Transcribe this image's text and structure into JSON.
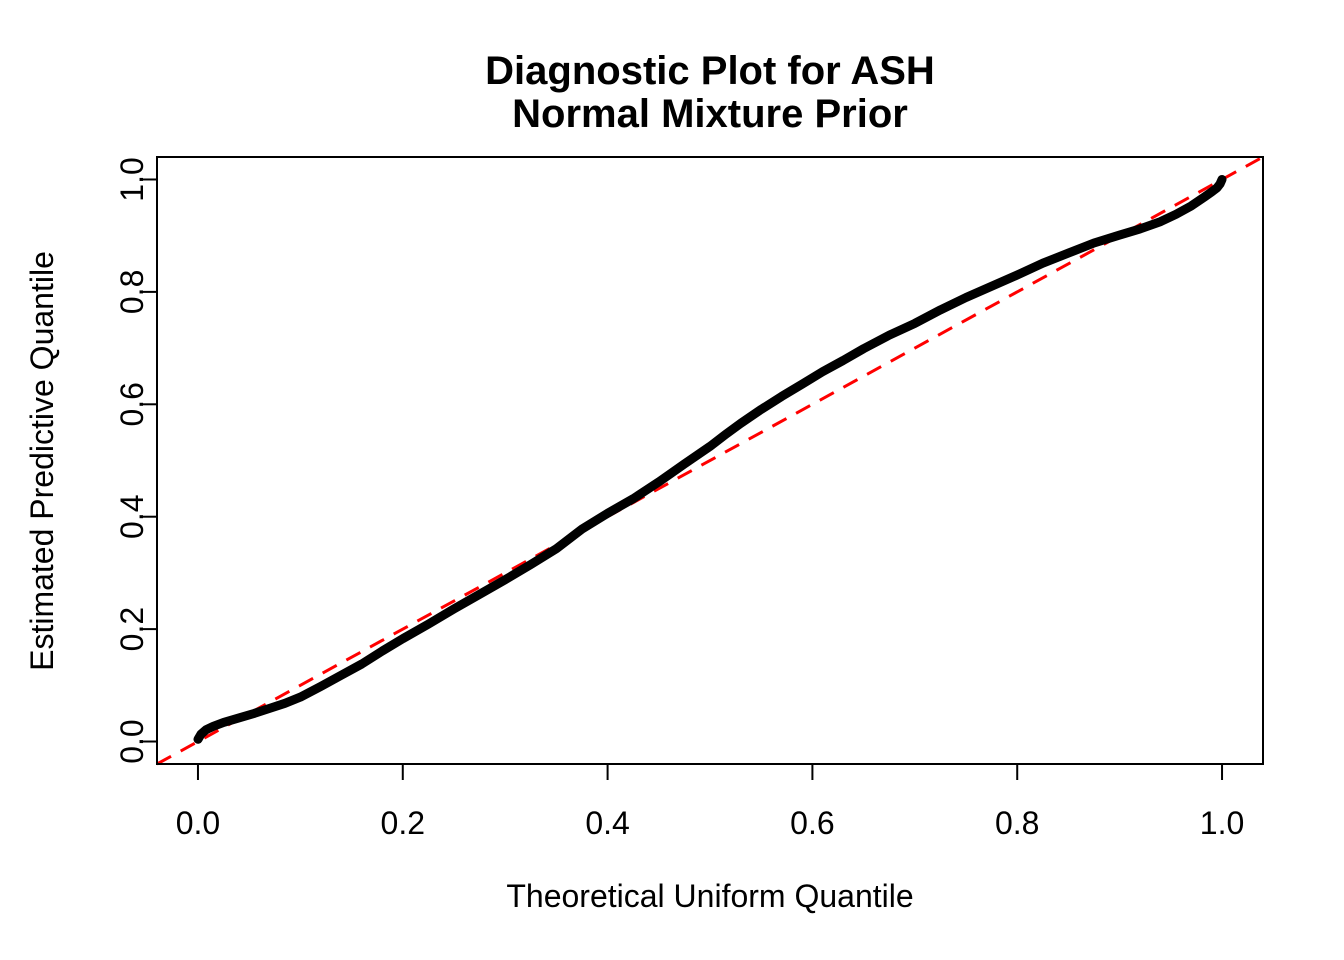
{
  "window": {
    "background_color": "#FFFFFF",
    "foreground_color": "#000000"
  },
  "chart_data": {
    "type": "line",
    "title_line1": "Diagnostic Plot for ASH",
    "title_line2": "Normal Mixture Prior",
    "xlabel": "Theoretical Uniform Quantile",
    "ylabel": "Estimated Predictive Quantile",
    "xlim": [
      -0.04,
      1.04
    ],
    "ylim": [
      -0.04,
      1.04
    ],
    "grid": false,
    "legend": null,
    "x_ticks": [
      0.0,
      0.2,
      0.4,
      0.6,
      0.8,
      1.0
    ],
    "x_tick_labels": [
      "0.0",
      "0.2",
      "0.4",
      "0.6",
      "0.8",
      "1.0"
    ],
    "y_ticks": [
      0.0,
      0.2,
      0.4,
      0.6,
      0.8,
      1.0
    ],
    "y_tick_labels": [
      "0.0",
      "0.2",
      "0.4",
      "0.6",
      "0.8",
      "1.0"
    ],
    "series": [
      {
        "name": "estimated-predictive-quantile-curve",
        "color": "#000000",
        "line_width": 9,
        "x": [
          0.0,
          0.003,
          0.008,
          0.015,
          0.025,
          0.04,
          0.055,
          0.07,
          0.085,
          0.1,
          0.12,
          0.14,
          0.16,
          0.18,
          0.2,
          0.225,
          0.25,
          0.275,
          0.3,
          0.325,
          0.35,
          0.375,
          0.4,
          0.425,
          0.45,
          0.475,
          0.5,
          0.515,
          0.53,
          0.55,
          0.57,
          0.59,
          0.61,
          0.63,
          0.65,
          0.675,
          0.7,
          0.725,
          0.75,
          0.775,
          0.8,
          0.825,
          0.85,
          0.875,
          0.9,
          0.92,
          0.94,
          0.955,
          0.97,
          0.983,
          0.99,
          0.995,
          0.998,
          1.0
        ],
        "y": [
          0.004,
          0.013,
          0.021,
          0.027,
          0.034,
          0.042,
          0.05,
          0.059,
          0.068,
          0.079,
          0.098,
          0.118,
          0.138,
          0.161,
          0.183,
          0.209,
          0.236,
          0.262,
          0.288,
          0.315,
          0.343,
          0.378,
          0.406,
          0.432,
          0.462,
          0.494,
          0.525,
          0.546,
          0.566,
          0.591,
          0.614,
          0.636,
          0.658,
          0.678,
          0.699,
          0.723,
          0.744,
          0.768,
          0.79,
          0.81,
          0.83,
          0.851,
          0.869,
          0.887,
          0.901,
          0.912,
          0.925,
          0.938,
          0.953,
          0.969,
          0.978,
          0.985,
          0.992,
          1.0
        ]
      }
    ],
    "reference_line": {
      "name": "identity-line",
      "equation": "y = x",
      "color": "#FF0000",
      "style": "dashed",
      "from": [
        -0.04,
        -0.04
      ],
      "to": [
        1.04,
        1.04
      ]
    }
  }
}
